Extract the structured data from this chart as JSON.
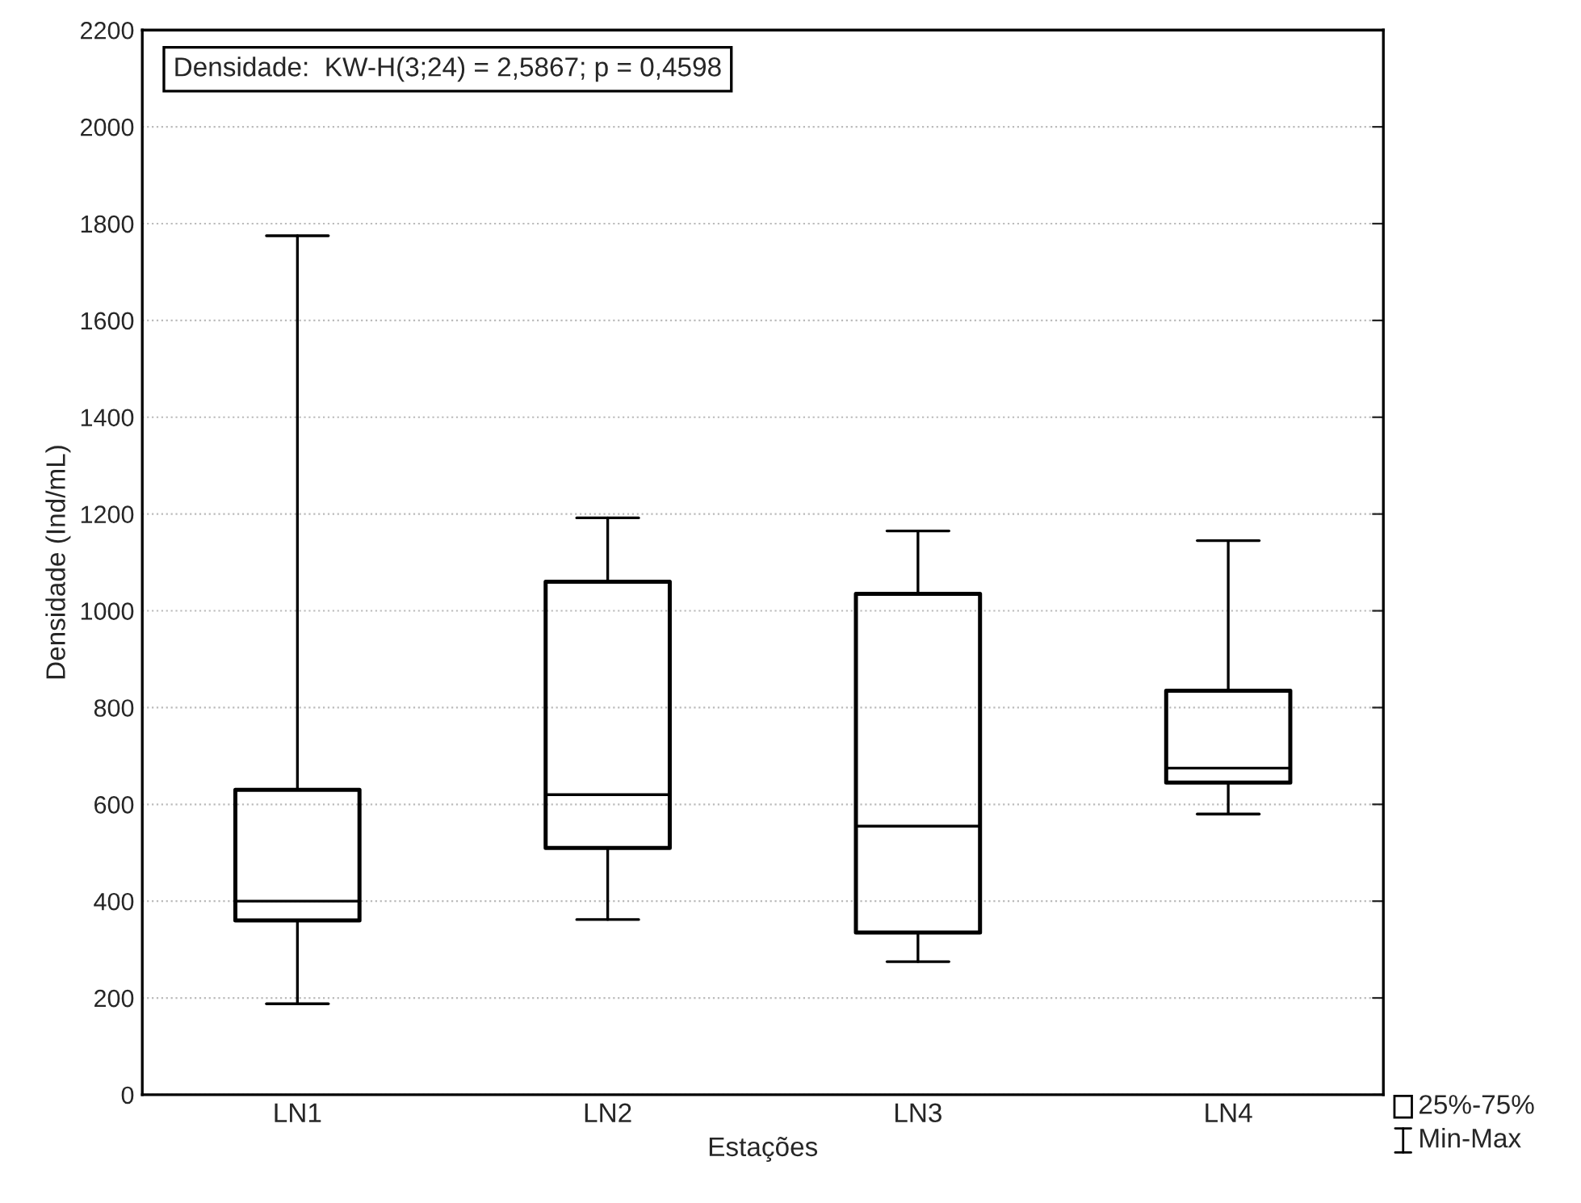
{
  "chart_data": {
    "type": "box",
    "xlabel": "Estações",
    "ylabel": "Densidade (Ind/mL)",
    "categories": [
      "LN1",
      "LN2",
      "LN3",
      "LN4"
    ],
    "boxes": [
      {
        "low": 188,
        "q1": 360,
        "median": 400,
        "q3": 630,
        "high": 1775
      },
      {
        "low": 362,
        "q1": 510,
        "median": 620,
        "q3": 1060,
        "high": 1192
      },
      {
        "low": 275,
        "q1": 335,
        "median": 555,
        "q3": 1035,
        "high": 1165
      },
      {
        "low": 580,
        "q1": 645,
        "median": 675,
        "q3": 835,
        "high": 1145
      }
    ],
    "color": "#000000",
    "ylim": [
      0,
      2200
    ],
    "yticks": [
      0,
      200,
      400,
      600,
      800,
      1000,
      1200,
      1400,
      1600,
      1800,
      2000,
      2200
    ],
    "grid": "y",
    "annotations": [
      "Densidade:  KW-H(3;24) = 2,5867; p = 0,4598",
      "25%-75%",
      "Min-Max"
    ]
  }
}
